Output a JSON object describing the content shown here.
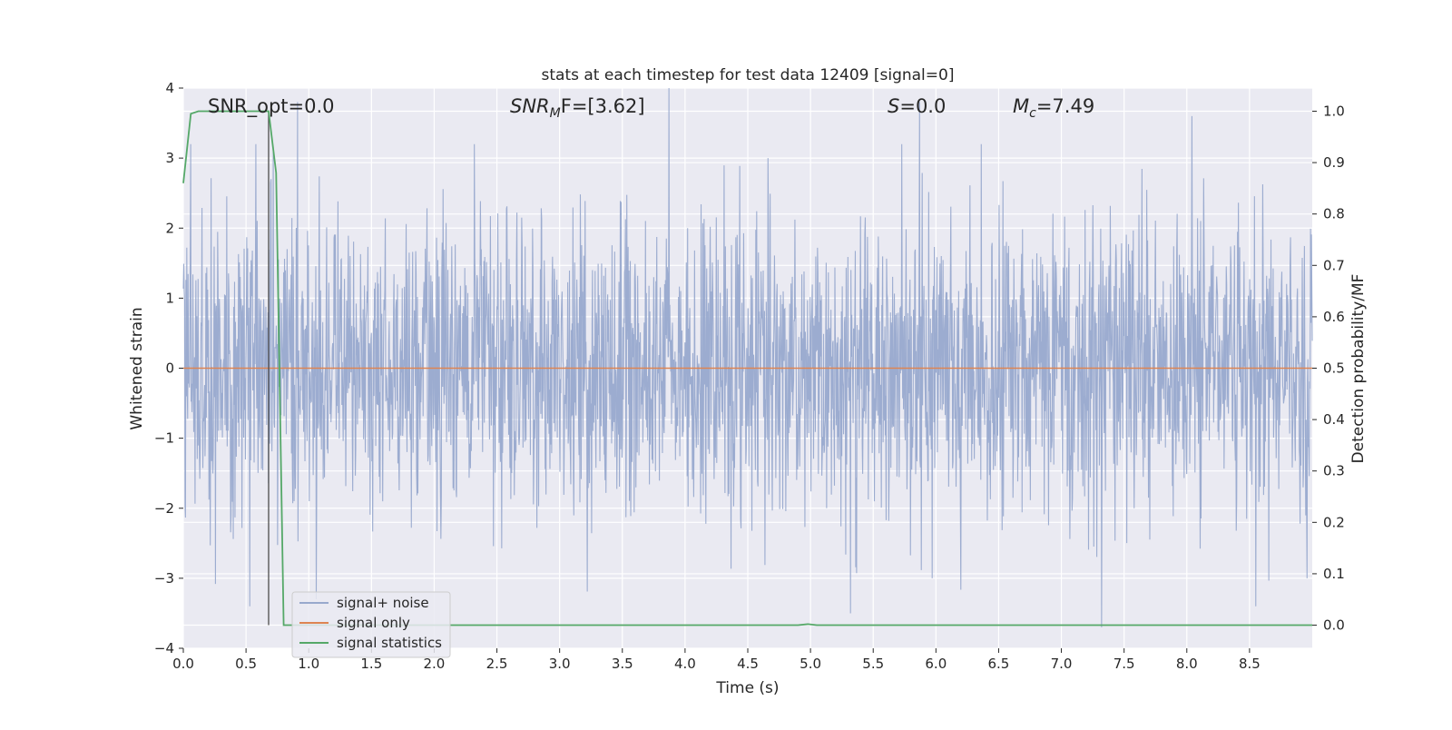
{
  "chart_data": {
    "type": "line",
    "title": "stats at each timestep for test data 12409 [signal=0]",
    "xlabel": "Time (s)",
    "ylabel": "Whitened strain",
    "ylabel_right": "Detection probability/MF",
    "xlim": [
      0.0,
      9.0
    ],
    "ylim": [
      -4.0,
      4.0
    ],
    "ylim_right": [
      -0.045,
      1.045
    ],
    "x_ticks": [
      "0.0",
      "0.5",
      "1.0",
      "1.5",
      "2.0",
      "2.5",
      "3.0",
      "3.5",
      "4.0",
      "4.5",
      "5.0",
      "5.5",
      "6.0",
      "6.5",
      "7.0",
      "7.5",
      "8.0",
      "8.5"
    ],
    "y_ticks": [
      "4",
      "3",
      "2",
      "1",
      "0",
      "−1",
      "−2",
      "−3",
      "−4"
    ],
    "y_ticks_right": [
      "1.0",
      "0.9",
      "0.8",
      "0.7",
      "0.6",
      "0.5",
      "0.4",
      "0.3",
      "0.2",
      "0.1",
      "0.0"
    ],
    "grid": true,
    "legend_placement": "lower-left",
    "annotations": {
      "snr_opt": "SNR_opt=0.0",
      "snr_mf_sym": "SNR",
      "snr_mf_sub": "M",
      "snr_mf_rest": "F=[3.62]",
      "s_sym": "S",
      "s_rest": "=0.0",
      "mc_sym": "M",
      "mc_sub": "c",
      "mc_rest": "=7.49"
    },
    "series": [
      {
        "name": "signal+ noise",
        "color": "#98a9cd",
        "style": "dense whitened noise, approx. range -3.7 to 4.0",
        "peak_values": [
          {
            "x": 0.53,
            "y": -3.4
          },
          {
            "x": 0.7,
            "y": 2.7
          },
          {
            "x": 0.91,
            "y": 3.8
          },
          {
            "x": 1.06,
            "y": -3.3
          },
          {
            "x": 3.87,
            "y": 4.0
          },
          {
            "x": 4.66,
            "y": 3.0
          },
          {
            "x": 5.32,
            "y": -3.5
          },
          {
            "x": 5.87,
            "y": 3.8
          },
          {
            "x": 5.97,
            "y": -3.0
          },
          {
            "x": 7.32,
            "y": -3.7
          },
          {
            "x": 8.04,
            "y": 3.6
          },
          {
            "x": 8.55,
            "y": -3.4
          },
          {
            "x": 8.96,
            "y": -3.0
          }
        ]
      },
      {
        "name": "signal only",
        "color": "#dd8452",
        "x": [
          0.0,
          9.0
        ],
        "y": [
          0.0,
          0.0
        ]
      },
      {
        "name": "signal statistics",
        "color": "#55a868",
        "axis": "right",
        "x": [
          0.0,
          0.06,
          0.12,
          0.3,
          0.5,
          0.68,
          0.74,
          0.8,
          1.0,
          3.0,
          4.9,
          4.98,
          5.05,
          6.0,
          8.0,
          9.0
        ],
        "y": [
          0.86,
          0.995,
          1.0,
          1.0,
          1.0,
          1.0,
          0.88,
          0.0,
          0.0,
          0.0,
          0.0,
          0.002,
          0.0,
          0.0,
          0.0,
          0.0
        ]
      }
    ],
    "vertical_marker": {
      "x": 0.68,
      "color": "#4d4d4d"
    }
  }
}
